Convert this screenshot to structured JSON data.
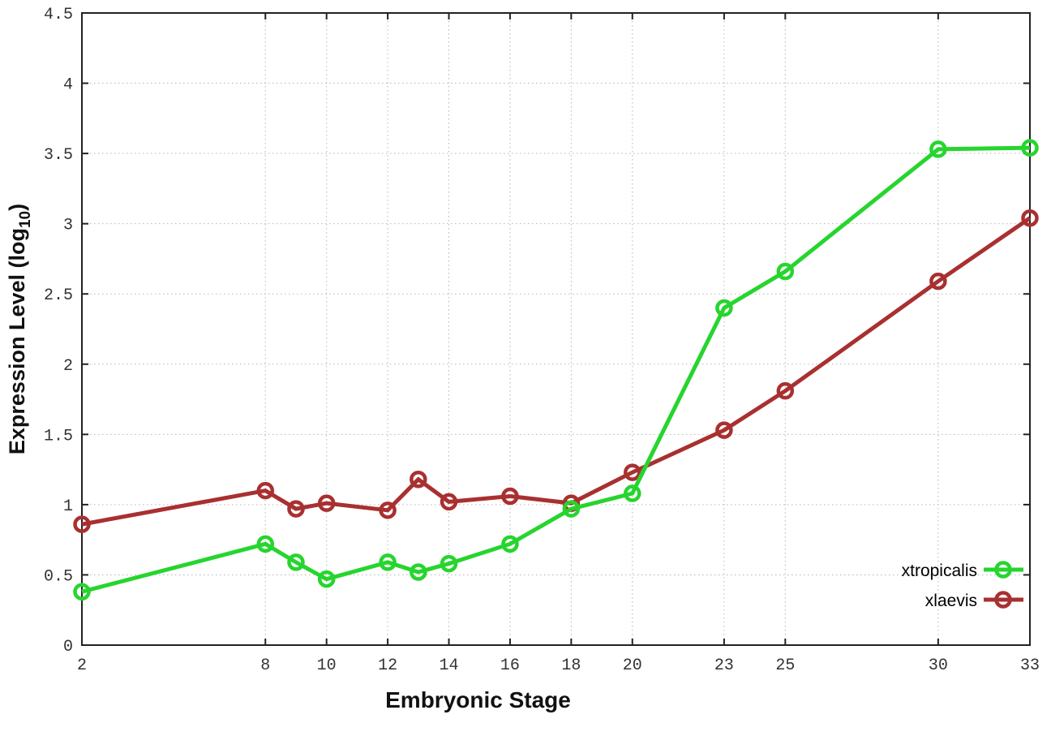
{
  "chart_data": {
    "type": "line",
    "title": "",
    "xlabel": "Embryonic Stage",
    "ylabel": {
      "text": "Expression Level (log",
      "sub": "10",
      "suffix": ")"
    },
    "xlim": [
      2,
      33
    ],
    "ylim": [
      0,
      4.5
    ],
    "x_ticks": [
      2,
      8,
      10,
      12,
      14,
      16,
      18,
      20,
      23,
      25,
      30,
      33
    ],
    "x_tick_labels": [
      "2",
      "8",
      "10",
      "12",
      "14",
      "16",
      "18",
      "20",
      "23",
      "25",
      "30",
      "33"
    ],
    "y_ticks": [
      0,
      0.5,
      1,
      1.5,
      2,
      2.5,
      3,
      3.5,
      4,
      4.5
    ],
    "y_tick_labels": [
      "0",
      "0.5",
      "1",
      "1.5",
      "2",
      "2.5",
      "3",
      "3.5",
      "4",
      "4.5"
    ],
    "grid": true,
    "legend_position": "inside-bottom-right",
    "x": [
      2,
      8,
      9,
      10,
      12,
      13,
      14,
      16,
      18,
      20,
      23,
      25,
      30,
      33
    ],
    "series": [
      {
        "name": "xtropicalis",
        "color": "#26d52e",
        "marker": "open-circle",
        "values": [
          0.38,
          0.72,
          0.59,
          0.47,
          0.59,
          0.52,
          0.58,
          0.72,
          0.97,
          1.08,
          2.4,
          2.66,
          3.53,
          3.54
        ]
      },
      {
        "name": "xlaevis",
        "color": "#a93030",
        "marker": "open-circle",
        "values": [
          0.86,
          1.1,
          0.97,
          1.01,
          0.96,
          1.18,
          1.02,
          1.06,
          1.01,
          1.23,
          1.53,
          1.81,
          2.59,
          3.04
        ]
      }
    ],
    "colors": {
      "grid": "#b5b5b5",
      "axis": "#222222",
      "tick_text": "#333333",
      "label_text": "#111111",
      "background": "#ffffff"
    }
  }
}
